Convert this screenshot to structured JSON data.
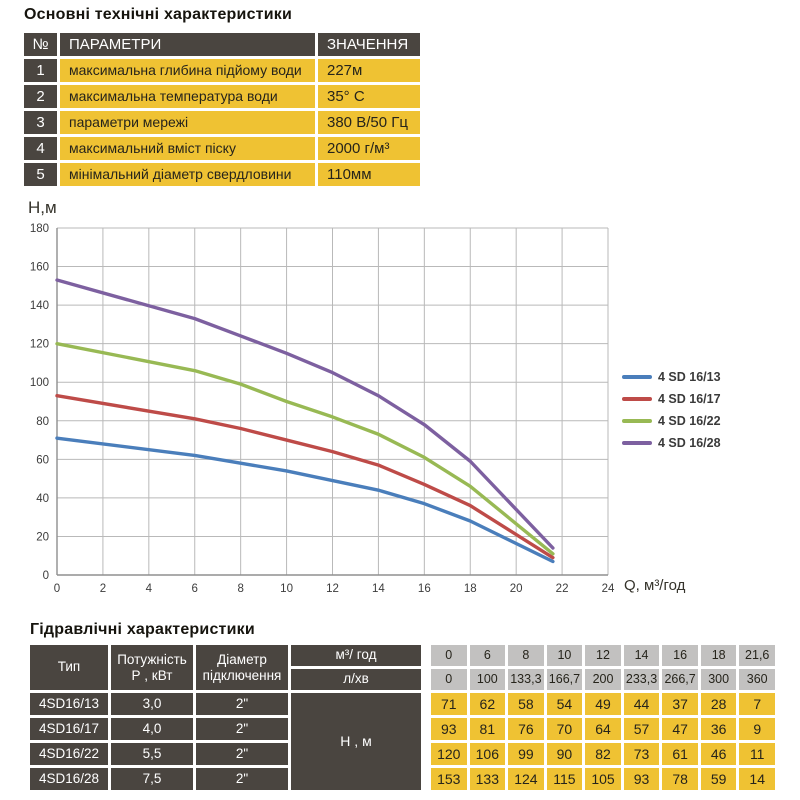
{
  "colors": {
    "table_dark": "#4a4540",
    "table_yellow": "#efc233",
    "table_gray": "#c2c1c0",
    "grid": "#b9b9b9",
    "axis": "#8f8f8f",
    "tick_text": "#3c3c3c",
    "series_blue": "#4a7ebb",
    "series_red": "#be4b48",
    "series_green": "#98b954",
    "series_purple": "#7d60a0"
  },
  "tech_table": {
    "title": "Основні технічні характеристики",
    "headers": {
      "num": "№",
      "param": "ПАРАМЕТРИ",
      "value": "ЗНАЧЕННЯ"
    },
    "rows": [
      {
        "num": "1",
        "param": "максимальна глибина підйому води",
        "value": "227м"
      },
      {
        "num": "2",
        "param": "максимальна температура води",
        "value": "35° С"
      },
      {
        "num": "3",
        "param": "параметри мережі",
        "value": "380 В/50 Гц"
      },
      {
        "num": "4",
        "param": "максимальний вміст піску",
        "value": "2000 г/м³"
      },
      {
        "num": "5",
        "param": "мінімальний діаметр свердловини",
        "value": "110мм"
      }
    ]
  },
  "chart_data": {
    "type": "line",
    "title": "",
    "xlabel": "Q,  м³/год",
    "ylabel": "Н,м",
    "xlim": [
      0,
      24
    ],
    "ylim": [
      0,
      180
    ],
    "xticks": [
      0,
      2,
      4,
      6,
      8,
      10,
      12,
      14,
      16,
      18,
      20,
      22,
      24
    ],
    "yticks": [
      0,
      20,
      40,
      60,
      80,
      100,
      120,
      140,
      160,
      180
    ],
    "grid": true,
    "legend_position": "right",
    "x": [
      0,
      6,
      8,
      10,
      12,
      14,
      16,
      18,
      21.6
    ],
    "series": [
      {
        "name": "4 SD 16/13",
        "color": "#4a7ebb",
        "values": [
          71,
          62,
          58,
          54,
          49,
          44,
          37,
          28,
          7
        ]
      },
      {
        "name": "4 SD 16/17",
        "color": "#be4b48",
        "values": [
          93,
          81,
          76,
          70,
          64,
          57,
          47,
          36,
          9
        ]
      },
      {
        "name": "4 SD 16/22",
        "color": "#98b954",
        "values": [
          120,
          106,
          99,
          90,
          82,
          73,
          61,
          46,
          11
        ]
      },
      {
        "name": "4 SD 16/28",
        "color": "#7d60a0",
        "values": [
          153,
          133,
          124,
          115,
          105,
          93,
          78,
          59,
          14
        ]
      }
    ]
  },
  "hydraulic_table": {
    "title": "Гідравлічні характеристики",
    "headers": {
      "type": "Тип",
      "power_l1": "Потужність",
      "power_l2": "Р , кВт",
      "diam_l1": "Діаметр",
      "diam_l2": "підключення",
      "flow_m3": "м³/ год",
      "flow_l": "л/хв",
      "head": "Н , м"
    },
    "flow_m3_values": [
      "0",
      "6",
      "8",
      "10",
      "12",
      "14",
      "16",
      "18",
      "21,6"
    ],
    "flow_l_values": [
      "0",
      "100",
      "133,3",
      "166,7",
      "200",
      "233,3",
      "266,7",
      "300",
      "360"
    ],
    "rows": [
      {
        "type": "4SD16/13",
        "power": "3,0",
        "diameter": "2\"",
        "heads": [
          "71",
          "62",
          "58",
          "54",
          "49",
          "44",
          "37",
          "28",
          "7"
        ]
      },
      {
        "type": "4SD16/17",
        "power": "4,0",
        "diameter": "2\"",
        "heads": [
          "93",
          "81",
          "76",
          "70",
          "64",
          "57",
          "47",
          "36",
          "9"
        ]
      },
      {
        "type": "4SD16/22",
        "power": "5,5",
        "diameter": "2\"",
        "heads": [
          "120",
          "106",
          "99",
          "90",
          "82",
          "73",
          "61",
          "46",
          "11"
        ]
      },
      {
        "type": "4SD16/28",
        "power": "7,5",
        "diameter": "2\"",
        "heads": [
          "153",
          "133",
          "124",
          "115",
          "105",
          "93",
          "78",
          "59",
          "14"
        ]
      }
    ]
  }
}
